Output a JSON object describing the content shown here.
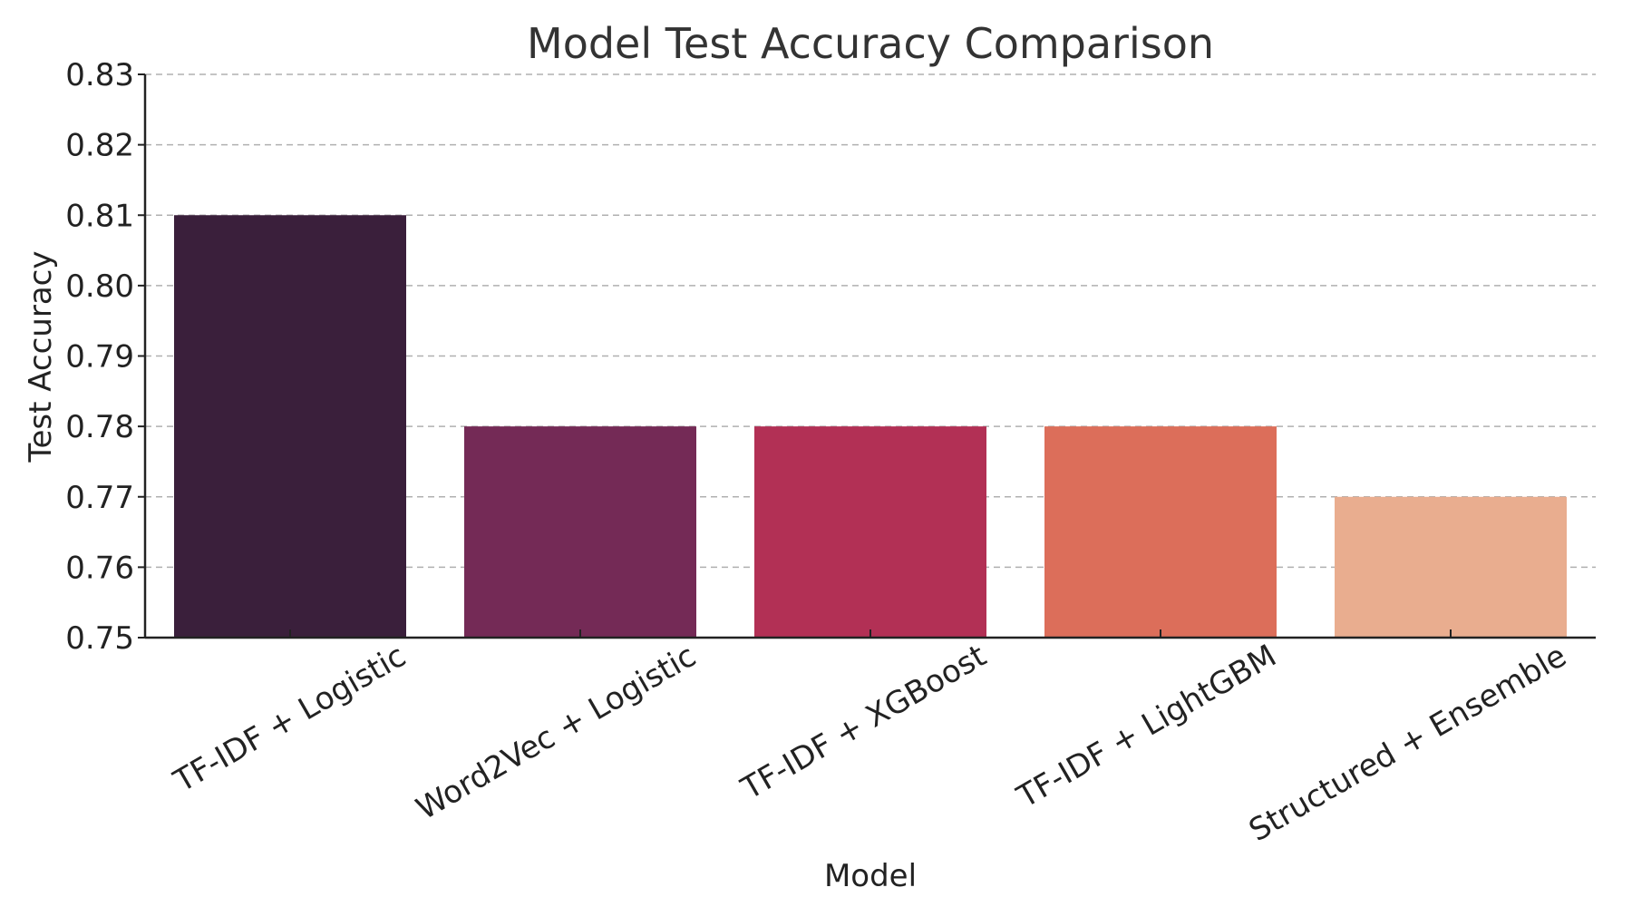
{
  "chart_data": {
    "type": "bar",
    "title": "Model Test Accuracy Comparison",
    "xlabel": "Model",
    "ylabel": "Test Accuracy",
    "categories": [
      "TF-IDF + Logistic",
      "Word2Vec + Logistic",
      "TF-IDF + XGBoost",
      "TF-IDF + LightGBM",
      "Structured + Ensemble"
    ],
    "values": [
      0.81,
      0.78,
      0.78,
      0.78,
      0.77
    ],
    "colors": [
      "#3a1f3b",
      "#742a56",
      "#b23055",
      "#dc6e5a",
      "#e9ad8f"
    ],
    "ylim": [
      0.75,
      0.83
    ],
    "yticks": [
      "0.75",
      "0.76",
      "0.77",
      "0.78",
      "0.79",
      "0.80",
      "0.81",
      "0.82",
      "0.83"
    ],
    "grid": "y-dashed",
    "legend": "none"
  }
}
